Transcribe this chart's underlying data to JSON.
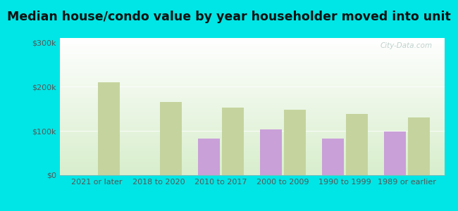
{
  "title": "Median house/condo value by year householder moved into unit",
  "categories": [
    "2021 or later",
    "2018 to 2020",
    "2010 to 2017",
    "2000 to 2009",
    "1990 to 1999",
    "1989 or earlier"
  ],
  "addison_values": [
    0,
    0,
    83000,
    103000,
    82000,
    98000
  ],
  "wv_values": [
    210000,
    165000,
    153000,
    148000,
    138000,
    130000
  ],
  "addison_color": "#c9a0d8",
  "wv_color": "#c5d49e",
  "background_outer": "#00e5e5",
  "background_top": "#ffffff",
  "background_bottom": "#d8eecc",
  "ylim": [
    0,
    310000
  ],
  "yticks": [
    0,
    100000,
    200000,
    300000
  ],
  "ytick_labels": [
    "$0",
    "$100k",
    "$200k",
    "$300k"
  ],
  "bar_width": 0.35,
  "title_fontsize": 12.5,
  "axis_fontsize": 8,
  "legend_fontsize": 9,
  "watermark_color": "#b8ccc8",
  "tick_color": "#555555"
}
